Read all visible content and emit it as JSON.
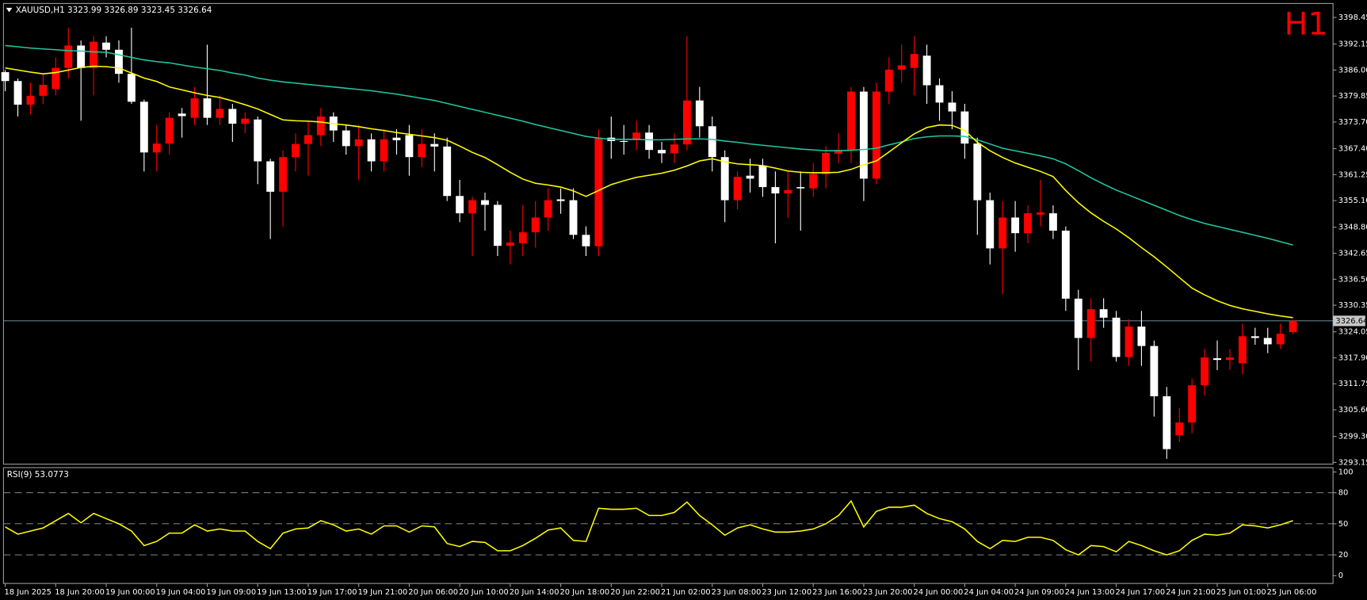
{
  "chart_data": [
    {
      "type": "candlestick",
      "title": "XAUUSD,H1  3323.99 3326.89 3323.45 3326.64",
      "timeframe": "H1",
      "categories": [
        "18 Jun 2025",
        null,
        null,
        null,
        "18 Jun 20:00",
        null,
        null,
        null,
        "19 Jun 00:00",
        null,
        null,
        null,
        "19 Jun 04:00",
        null,
        null,
        null,
        "19 Jun 09:00",
        null,
        null,
        null,
        "19 Jun 13:00",
        null,
        null,
        null,
        "19 Jun 17:00",
        null,
        null,
        null,
        "19 Jun 21:00",
        null,
        null,
        null,
        "20 Jun 06:00",
        null,
        null,
        null,
        "20 Jun 10:00",
        null,
        null,
        null,
        "20 Jun 14:00",
        null,
        null,
        null,
        "20 Jun 18:00",
        null,
        null,
        null,
        "20 Jun 22:00",
        null,
        null,
        null,
        "21 Jun 02:00",
        null,
        null,
        null,
        "23 Jun 08:00",
        null,
        null,
        null,
        "23 Jun 12:00",
        null,
        null,
        null,
        "23 Jun 16:00",
        null,
        null,
        null,
        "23 Jun 20:00",
        null,
        null,
        null,
        "24 Jun 00:00",
        null,
        null,
        null,
        "24 Jun 04:00",
        null,
        null,
        null,
        "24 Jun 09:00",
        null,
        null,
        null,
        "24 Jun 13:00",
        null,
        null,
        null,
        "24 Jun 17:00",
        null,
        null,
        null,
        "24 Jun 21:00",
        null,
        null,
        null,
        "25 Jun 01:00",
        null,
        null,
        null,
        "25 Jun 06:00",
        null,
        null
      ],
      "open": [
        3385.5,
        3383.4,
        3377.8,
        3379.9,
        3381.5,
        3386.5,
        3391.8,
        3386.5,
        3392.5,
        3390.8,
        3385.1,
        3378.5,
        3366.5,
        3368.6,
        3375.7,
        3374.7,
        3379.3,
        3374.7,
        3376.8,
        3373.3,
        3374.3,
        3364.4,
        3357.2,
        3365.4,
        3368.5,
        3370.6,
        3375,
        3371.7,
        3368,
        3369.6,
        3364.4,
        3370,
        3370.6,
        3365.4,
        3368.5,
        3367.9,
        3356.2,
        3352.1,
        3355.2,
        3354.1,
        3344.4,
        3345,
        3347.6,
        3351.1,
        3355.4,
        3355.2,
        3347,
        3344.3,
        3370,
        3369.2,
        3369.6,
        3371.2,
        3367.1,
        3366.3,
        3368.4,
        3378.8,
        3372.7,
        3365.4,
        3355.2,
        3361,
        3363.4,
        3358.3,
        3356.8,
        3358.3,
        3358,
        3361.4,
        3366.2,
        3367.1,
        3380.9,
        3360.3,
        3380.9,
        3386.1,
        3386.5,
        3389.4,
        3382.4,
        3378.3,
        3376.2,
        3368.6,
        3355.2,
        3343.8,
        3351.1,
        3347.4,
        3351.8,
        3352.1,
        3348,
        3331.9,
        3322.6,
        3329.4,
        3327.4,
        3318.1,
        3325.3,
        3320.7,
        3308.8,
        3299.6,
        3302.6,
        3311.4,
        3317.8,
        3317.4,
        3316.6,
        3323,
        3322.6,
        3321.1,
        3323.99
      ],
      "high": [
        3386,
        3384,
        3383,
        3385,
        3389,
        3396,
        3393,
        3394,
        3394,
        3393,
        3396,
        3379,
        3373,
        3376,
        3377,
        3382,
        3392,
        3380,
        3378,
        3376,
        3375,
        3365,
        3367,
        3371,
        3374,
        3377,
        3376,
        3373,
        3373,
        3371,
        3372,
        3372,
        3373,
        3372,
        3371,
        3370,
        3360,
        3356,
        3357,
        3355,
        3348,
        3354,
        3355,
        3358,
        3358,
        3358,
        3349,
        3372,
        3375,
        3373,
        3374,
        3373,
        3369,
        3371,
        3394,
        3382,
        3375,
        3367,
        3362,
        3365,
        3365,
        3362,
        3362,
        3362,
        3364,
        3368,
        3371,
        3382,
        3382,
        3383,
        3389,
        3392,
        3394,
        3392,
        3384,
        3381,
        3378,
        3370,
        3357,
        3355,
        3355,
        3354,
        3360,
        3354,
        3349,
        3334,
        3332,
        3332,
        3329,
        3327,
        3329,
        3322,
        3311,
        3306,
        3313,
        3320,
        3322,
        3320,
        3326,
        3325,
        3325,
        3326,
        3326.89
      ],
      "low": [
        3381,
        3375,
        3375.5,
        3378,
        3380,
        3384,
        3374,
        3380,
        3389,
        3383,
        3378,
        3362,
        3362,
        3366,
        3370,
        3373,
        3373,
        3373,
        3369,
        3371,
        3359,
        3346,
        3349,
        3362,
        3361,
        3368,
        3369,
        3366,
        3360,
        3362,
        3362,
        3366,
        3361,
        3363,
        3362,
        3355,
        3350,
        3342,
        3348,
        3342,
        3340,
        3342,
        3344,
        3348,
        3352,
        3346,
        3342,
        3342,
        3365,
        3366,
        3367,
        3365,
        3364,
        3364,
        3367,
        3370,
        3362,
        3350,
        3353,
        3357,
        3356,
        3345,
        3351,
        3348,
        3356,
        3358,
        3364,
        3364,
        3355,
        3359,
        3378,
        3383,
        3380,
        3378,
        3374,
        3372,
        3365,
        3347,
        3340,
        3333,
        3343,
        3345,
        3349,
        3346,
        3329,
        3315,
        3317,
        3325,
        3317,
        3316,
        3316,
        3304,
        3294,
        3298,
        3300,
        3309,
        3315,
        3315,
        3314,
        3321,
        3319,
        3320,
        3323.45
      ],
      "close": [
        3383.4,
        3377.8,
        3379.9,
        3382.5,
        3386.5,
        3391.8,
        3386.5,
        3392.7,
        3390.8,
        3385.1,
        3378.5,
        3366.5,
        3368.6,
        3374.7,
        3375.1,
        3379.3,
        3374.7,
        3376.8,
        3373.3,
        3374.5,
        3364.4,
        3357.2,
        3365.4,
        3368.5,
        3370.6,
        3375,
        3371.7,
        3368,
        3369.6,
        3364.4,
        3369.6,
        3369.4,
        3365.4,
        3368.5,
        3367.9,
        3356.2,
        3352.1,
        3355.2,
        3354.1,
        3344.4,
        3345.2,
        3347.6,
        3351.1,
        3355.2,
        3355,
        3347,
        3344.3,
        3370,
        3369.2,
        3369,
        3371.2,
        3367.1,
        3366.3,
        3368.4,
        3378.8,
        3372.7,
        3365.4,
        3355.2,
        3360.7,
        3360.3,
        3358.3,
        3356.8,
        3357.6,
        3358,
        3361.4,
        3366.4,
        3367.1,
        3380.9,
        3360.3,
        3380.9,
        3386.1,
        3387.1,
        3389.8,
        3382.4,
        3378.3,
        3376.2,
        3368.6,
        3355.2,
        3343.8,
        3351.1,
        3347.4,
        3352.1,
        3352.3,
        3348,
        3331.9,
        3322.6,
        3329.4,
        3327.4,
        3318.1,
        3325.3,
        3320.7,
        3308.8,
        3296.3,
        3302.6,
        3311.4,
        3318,
        3317.4,
        3318,
        3323,
        3322.6,
        3321.1,
        3323.6,
        3326.64
      ],
      "up_color": "#ff0000",
      "down_color": "#ffffff",
      "series": [
        {
          "color": "#20c8a0",
          "values": [
            3391.8,
            3391.5,
            3391.2,
            3391.0,
            3390.8,
            3390.6,
            3390.5,
            3390.3,
            3390.2,
            3389.6,
            3389.0,
            3388.4,
            3388.0,
            3387.7,
            3387.2,
            3386.7,
            3386.3,
            3385.9,
            3385.3,
            3384.8,
            3384.1,
            3383.6,
            3383.2,
            3382.9,
            3382.6,
            3382.3,
            3382.0,
            3381.7,
            3381.4,
            3381.1,
            3380.7,
            3380.3,
            3379.8,
            3379.3,
            3378.8,
            3378.1,
            3377.4,
            3376.7,
            3376.0,
            3375.3,
            3374.6,
            3373.9,
            3373.1,
            3372.4,
            3371.7,
            3371.0,
            3370.3,
            3369.9,
            3369.6,
            3369.6,
            3369.6,
            3369.5,
            3369.5,
            3369.6,
            3369.7,
            3369.7,
            3369.6,
            3369.2,
            3368.9,
            3368.5,
            3368.2,
            3367.9,
            3367.6,
            3367.3,
            3367.1,
            3366.9,
            3366.9,
            3367.0,
            3367.2,
            3367.5,
            3368.3,
            3369.0,
            3369.8,
            3370.2,
            3370.4,
            3370.4,
            3370.3,
            3369.5,
            3368.5,
            3367.5,
            3366.9,
            3366.3,
            3365.7,
            3365.0,
            3363.8,
            3362.2,
            3360.5,
            3359.0,
            3357.6,
            3356.4,
            3355.2,
            3354.0,
            3352.8,
            3351.6,
            3350.6,
            3349.7,
            3349.0,
            3348.3,
            3347.6,
            3346.9,
            3346.2,
            3345.4,
            3344.6
          ]
        },
        {
          "color": "#ffff00",
          "values": [
            3386.5,
            3386.0,
            3385.5,
            3385.1,
            3385.4,
            3386.0,
            3386.6,
            3386.9,
            3386.8,
            3386.5,
            3385.3,
            3384.1,
            3383.3,
            3382.0,
            3381.3,
            3380.6,
            3380.0,
            3379.5,
            3378.7,
            3377.8,
            3376.8,
            3375.5,
            3374.2,
            3374.0,
            3373.9,
            3373.7,
            3373.3,
            3373.0,
            3372.6,
            3372.1,
            3371.7,
            3371.2,
            3370.8,
            3370.4,
            3370.0,
            3369.4,
            3368.0,
            3366.5,
            3365.3,
            3363.6,
            3361.8,
            3360.2,
            3359.2,
            3358.8,
            3358.3,
            3357.4,
            3356.1,
            3357.5,
            3358.9,
            3359.8,
            3360.6,
            3361.1,
            3361.6,
            3362.3,
            3363.3,
            3364.5,
            3365.0,
            3364.3,
            3363.8,
            3363.6,
            3363.4,
            3362.8,
            3362.1,
            3361.8,
            3361.7,
            3361.7,
            3361.8,
            3362.5,
            3363.6,
            3364.5,
            3366.6,
            3368.8,
            3370.9,
            3372.4,
            3373.0,
            3372.9,
            3371.7,
            3368.9,
            3366.9,
            3365.3,
            3364.0,
            3363.0,
            3362.0,
            3360.8,
            3357.5,
            3354.6,
            3352.2,
            3350.2,
            3348.4,
            3346.3,
            3344.0,
            3341.8,
            3339.4,
            3336.9,
            3334.4,
            3332.8,
            3331.4,
            3330.3,
            3329.5,
            3328.9,
            3328.3,
            3327.8,
            3327.4
          ]
        }
      ],
      "price_line": 3326.64,
      "ylim": [
        3292.74,
        3401.75
      ],
      "yticks": [
        3398.45,
        3392.15,
        {
          "value": 3386,
          "label": "3386.00"
        },
        3379.85,
        {
          "value": 3373.7,
          "label": "3373.70"
        },
        {
          "value": 3367.4,
          "label": "3367.40"
        },
        3361.25,
        {
          "value": 3355.1,
          "label": "3355.10"
        },
        {
          "value": 3348.8,
          "label": "3348.80"
        },
        3342.65,
        {
          "value": 3336.5,
          "label": "3336.50"
        },
        3330.35,
        3324.05,
        {
          "value": 3317.9,
          "label": "3317.90"
        },
        3311.75,
        {
          "value": 3305.6,
          "label": "3305.60"
        },
        {
          "value": 3299.3,
          "label": "3299.30"
        },
        3293.15
      ],
      "grid": false
    },
    {
      "type": "line",
      "title": "RSI(9) 53.0773",
      "series": [
        {
          "color": "#ffff00",
          "values": [
            47,
            40,
            43,
            46,
            53,
            60,
            51,
            60,
            55,
            50,
            43,
            29,
            33,
            41,
            41,
            49,
            43,
            45,
            43,
            43,
            33,
            26,
            41,
            45,
            46,
            53,
            49,
            43,
            45,
            40,
            48,
            48,
            42,
            48,
            47,
            31,
            28,
            33,
            32,
            24,
            24,
            29,
            36,
            44,
            46,
            34,
            33,
            65,
            64,
            64,
            65,
            58,
            58,
            61,
            71,
            58,
            49,
            39,
            46,
            49,
            45,
            42,
            42,
            43,
            45,
            50,
            58,
            72,
            47,
            62,
            66,
            66,
            68,
            60,
            55,
            52,
            45,
            33,
            26,
            34,
            33,
            37,
            37,
            34,
            25,
            20,
            29,
            28,
            23,
            33,
            29,
            24,
            20,
            24,
            34,
            40,
            39,
            41,
            49,
            48,
            46,
            49,
            53.0773
          ]
        }
      ],
      "levels": [
        80,
        50,
        20
      ],
      "ylim": [
        -7.56,
        104.2
      ],
      "yticks": [
        100,
        80,
        50,
        20,
        0
      ],
      "grid": false
    }
  ]
}
